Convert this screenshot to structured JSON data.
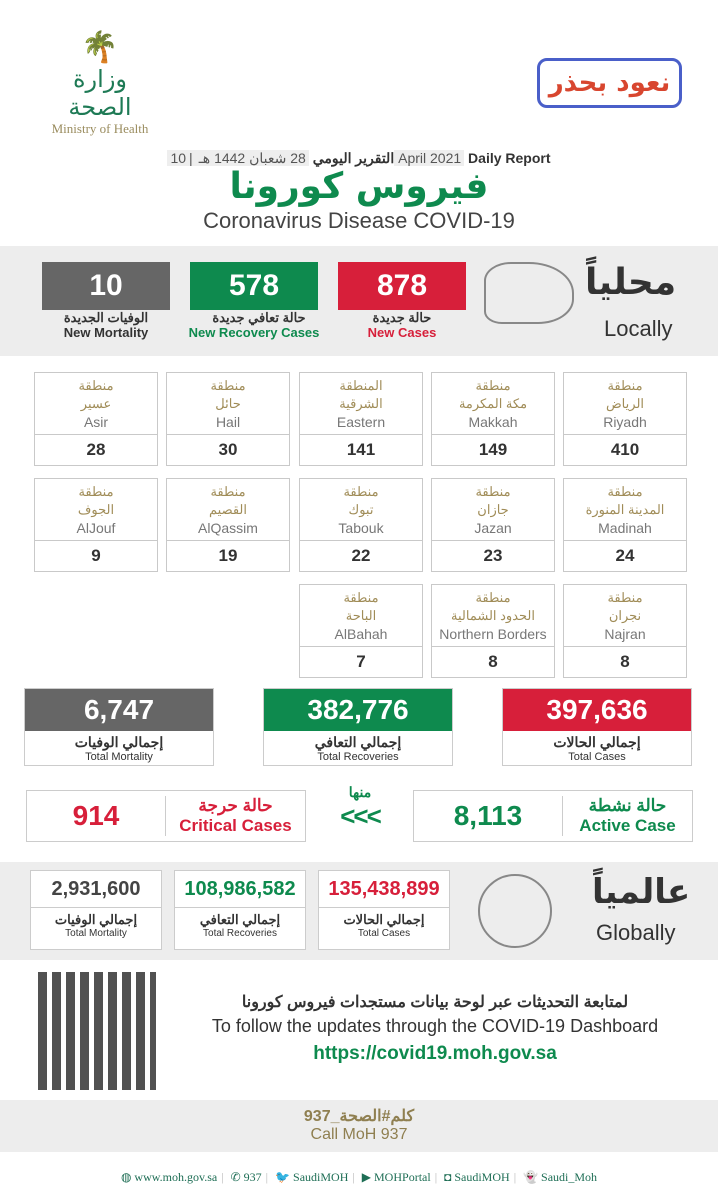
{
  "header": {
    "moh_logo_ar": "وزارة الصحة",
    "moh_logo_en": "Ministry of Health",
    "campaign_logo": "نعود بحذر",
    "report_ar": "التقرير اليومي",
    "hijri_date": "28 شعبان 1442 هـ",
    "gregorian_date": "10 April 2021",
    "report_en": "Daily Report",
    "title_ar": "فيروس كورونا",
    "title_en": "Coronavirus Disease COVID-19"
  },
  "local": {
    "label_ar": "محلياً",
    "label_en": "Locally",
    "new_cases": {
      "value": "878",
      "ar": "حالة جديدة",
      "en": "New Cases"
    },
    "new_recoveries": {
      "value": "578",
      "ar": "حالة تعافي جديدة",
      "en": "New Recovery Cases"
    },
    "new_mortality": {
      "value": "10",
      "ar": "الوفيات الجديدة",
      "en": "New Mortality"
    }
  },
  "regions": [
    {
      "ar1": "منطقة",
      "ar2": "الرياض",
      "en": "Riyadh",
      "value": "410"
    },
    {
      "ar1": "منطقة",
      "ar2": "مكة المكرمة",
      "en": "Makkah",
      "value": "149"
    },
    {
      "ar1": "المنطقة",
      "ar2": "الشرقية",
      "en": "Eastern",
      "value": "141"
    },
    {
      "ar1": "منطقة",
      "ar2": "حائل",
      "en": "Hail",
      "value": "30"
    },
    {
      "ar1": "منطقة",
      "ar2": "عسير",
      "en": "Asir",
      "value": "28"
    },
    {
      "ar1": "منطقة",
      "ar2": "المدينة المنورة",
      "en": "Madinah",
      "value": "24"
    },
    {
      "ar1": "منطقة",
      "ar2": "جازان",
      "en": "Jazan",
      "value": "23"
    },
    {
      "ar1": "منطقة",
      "ar2": "تبوك",
      "en": "Tabouk",
      "value": "22"
    },
    {
      "ar1": "منطقة",
      "ar2": "القصيم",
      "en": "AlQassim",
      "value": "19"
    },
    {
      "ar1": "منطقة",
      "ar2": "الجوف",
      "en": "AlJouf",
      "value": "9"
    },
    {
      "ar1": "منطقة",
      "ar2": "نجران",
      "en": "Najran",
      "value": "8"
    },
    {
      "ar1": "منطقة",
      "ar2": "الحدود الشمالية",
      "en": "Northern Borders",
      "value": "8"
    },
    {
      "ar1": "منطقة",
      "ar2": "الباحة",
      "en": "AlBahah",
      "value": "7"
    }
  ],
  "totals": {
    "cases": {
      "value": "397,636",
      "ar": "إجمالي الحالات",
      "en": "Total Cases"
    },
    "recoveries": {
      "value": "382,776",
      "ar": "إجمالي التعافي",
      "en": "Total Recoveries"
    },
    "mortality": {
      "value": "6,747",
      "ar": "إجمالي الوفيات",
      "en": "Total Mortality"
    }
  },
  "active": {
    "value": "8,113",
    "ar": "حالة نشطة",
    "en": "Active Case"
  },
  "of_which": {
    "ar": "منها",
    "arrows": "<<<"
  },
  "critical": {
    "value": "914",
    "ar": "حالة حرجة",
    "en": "Critical Cases"
  },
  "global": {
    "label_ar": "عالمياً",
    "label_en": "Globally",
    "cases": {
      "value": "135,438,899",
      "ar": "إجمالي الحالات",
      "en": "Total Cases"
    },
    "recoveries": {
      "value": "108,986,582",
      "ar": "إجمالي التعافي",
      "en": "Total Recoveries"
    },
    "mortality": {
      "value": "2,931,600",
      "ar": "إجمالي الوفيات",
      "en": "Total Mortality"
    }
  },
  "dashboard": {
    "ar": "لمتابعة التحديثات عبر لوحة بيانات مستجدات فيروس كورونا",
    "en": "To follow the updates through the COVID-19 Dashboard",
    "url": "https://covid19.moh.gov.sa"
  },
  "call": {
    "ar": "كلم#الصحة_937",
    "en": "Call MoH 937"
  },
  "footer": {
    "website": "www.moh.gov.sa",
    "phone": "937",
    "twitter": "SaudiMOH",
    "youtube": "MOHPortal",
    "instagram": "SaudiMOH",
    "snapchat": "Saudi_Moh"
  },
  "colors": {
    "red": "#d71f3a",
    "green": "#0e8a4e",
    "gray": "#666666",
    "gold": "#a08c57"
  }
}
